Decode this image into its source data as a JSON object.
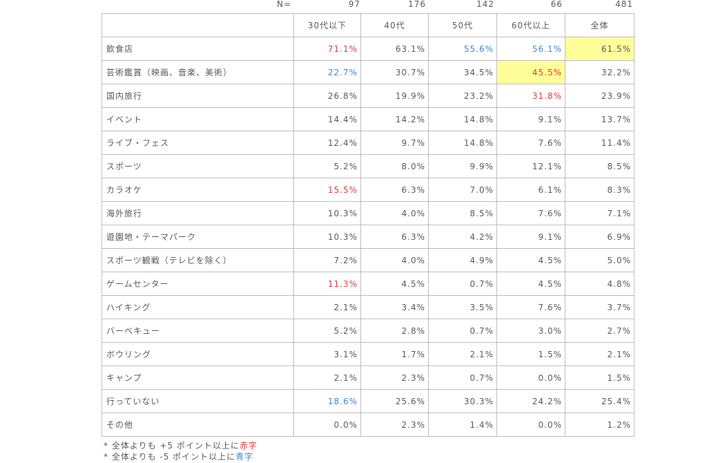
{
  "n_row": {
    "label": "N=",
    "values": [
      "97",
      "176",
      "142",
      "66",
      "481"
    ]
  },
  "chart_data": {
    "type": "table",
    "columns": [
      "30代以下",
      "40代",
      "50代",
      "60代以上",
      "全体"
    ],
    "rows": [
      {
        "label": "飲食店",
        "values": [
          "71.1%",
          "63.1%",
          "55.6%",
          "56.1%",
          "61.5%"
        ],
        "colors": [
          "red",
          "",
          "blue",
          "blue",
          ""
        ],
        "highlight": [
          false,
          false,
          false,
          false,
          true
        ]
      },
      {
        "label": "芸術鑑賞（映画、音楽、美術）",
        "values": [
          "22.7%",
          "30.7%",
          "34.5%",
          "45.5%",
          "32.2%"
        ],
        "colors": [
          "blue",
          "",
          "",
          "red",
          ""
        ],
        "highlight": [
          false,
          false,
          false,
          true,
          false
        ]
      },
      {
        "label": "国内旅行",
        "values": [
          "26.8%",
          "19.9%",
          "23.2%",
          "31.8%",
          "23.9%"
        ],
        "colors": [
          "",
          "",
          "",
          "red",
          ""
        ],
        "highlight": [
          false,
          false,
          false,
          false,
          false
        ]
      },
      {
        "label": "イベント",
        "values": [
          "14.4%",
          "14.2%",
          "14.8%",
          "9.1%",
          "13.7%"
        ],
        "colors": [
          "",
          "",
          "",
          "",
          ""
        ],
        "highlight": [
          false,
          false,
          false,
          false,
          false
        ]
      },
      {
        "label": "ライブ・フェス",
        "values": [
          "12.4%",
          "9.7%",
          "14.8%",
          "7.6%",
          "11.4%"
        ],
        "colors": [
          "",
          "",
          "",
          "",
          ""
        ],
        "highlight": [
          false,
          false,
          false,
          false,
          false
        ]
      },
      {
        "label": "スポーツ",
        "values": [
          "5.2%",
          "8.0%",
          "9.9%",
          "12.1%",
          "8.5%"
        ],
        "colors": [
          "",
          "",
          "",
          "",
          ""
        ],
        "highlight": [
          false,
          false,
          false,
          false,
          false
        ]
      },
      {
        "label": "カラオケ",
        "values": [
          "15.5%",
          "6.3%",
          "7.0%",
          "6.1%",
          "8.3%"
        ],
        "colors": [
          "red",
          "",
          "",
          "",
          ""
        ],
        "highlight": [
          false,
          false,
          false,
          false,
          false
        ]
      },
      {
        "label": "海外旅行",
        "values": [
          "10.3%",
          "4.0%",
          "8.5%",
          "7.6%",
          "7.1%"
        ],
        "colors": [
          "",
          "",
          "",
          "",
          ""
        ],
        "highlight": [
          false,
          false,
          false,
          false,
          false
        ]
      },
      {
        "label": "遊園地・テーマパーク",
        "values": [
          "10.3%",
          "6.3%",
          "4.2%",
          "9.1%",
          "6.9%"
        ],
        "colors": [
          "",
          "",
          "",
          "",
          ""
        ],
        "highlight": [
          false,
          false,
          false,
          false,
          false
        ]
      },
      {
        "label": "スポーツ観戦（テレビを除く）",
        "values": [
          "7.2%",
          "4.0%",
          "4.9%",
          "4.5%",
          "5.0%"
        ],
        "colors": [
          "",
          "",
          "",
          "",
          ""
        ],
        "highlight": [
          false,
          false,
          false,
          false,
          false
        ]
      },
      {
        "label": "ゲームセンター",
        "values": [
          "11.3%",
          "4.5%",
          "0.7%",
          "4.5%",
          "4.8%"
        ],
        "colors": [
          "red",
          "",
          "",
          "",
          ""
        ],
        "highlight": [
          false,
          false,
          false,
          false,
          false
        ]
      },
      {
        "label": "ハイキング",
        "values": [
          "2.1%",
          "3.4%",
          "3.5%",
          "7.6%",
          "3.7%"
        ],
        "colors": [
          "",
          "",
          "",
          "",
          ""
        ],
        "highlight": [
          false,
          false,
          false,
          false,
          false
        ]
      },
      {
        "label": "バーベキュー",
        "values": [
          "5.2%",
          "2.8%",
          "0.7%",
          "3.0%",
          "2.7%"
        ],
        "colors": [
          "",
          "",
          "",
          "",
          ""
        ],
        "highlight": [
          false,
          false,
          false,
          false,
          false
        ]
      },
      {
        "label": "ボウリング",
        "values": [
          "3.1%",
          "1.7%",
          "2.1%",
          "1.5%",
          "2.1%"
        ],
        "colors": [
          "",
          "",
          "",
          "",
          ""
        ],
        "highlight": [
          false,
          false,
          false,
          false,
          false
        ]
      },
      {
        "label": "キャンプ",
        "values": [
          "2.1%",
          "2.3%",
          "0.7%",
          "0.0%",
          "1.5%"
        ],
        "colors": [
          "",
          "",
          "",
          "",
          ""
        ],
        "highlight": [
          false,
          false,
          false,
          false,
          false
        ]
      },
      {
        "label": "行っていない",
        "values": [
          "18.6%",
          "25.6%",
          "30.3%",
          "24.2%",
          "25.4%"
        ],
        "colors": [
          "blue",
          "",
          "",
          "",
          ""
        ],
        "highlight": [
          false,
          false,
          false,
          false,
          false
        ]
      },
      {
        "label": "その他",
        "values": [
          "0.0%",
          "2.3%",
          "1.4%",
          "0.0%",
          "1.2%"
        ],
        "colors": [
          "",
          "",
          "",
          "",
          ""
        ],
        "highlight": [
          false,
          false,
          false,
          false,
          false
        ]
      }
    ]
  },
  "notes": [
    {
      "prefix": "* 全体よりも +5 ポイント以上に",
      "suffix": "赤字",
      "color": "red"
    },
    {
      "prefix": "* 全体よりも -5 ポイント以上に",
      "suffix": "青字",
      "color": "blue"
    }
  ]
}
